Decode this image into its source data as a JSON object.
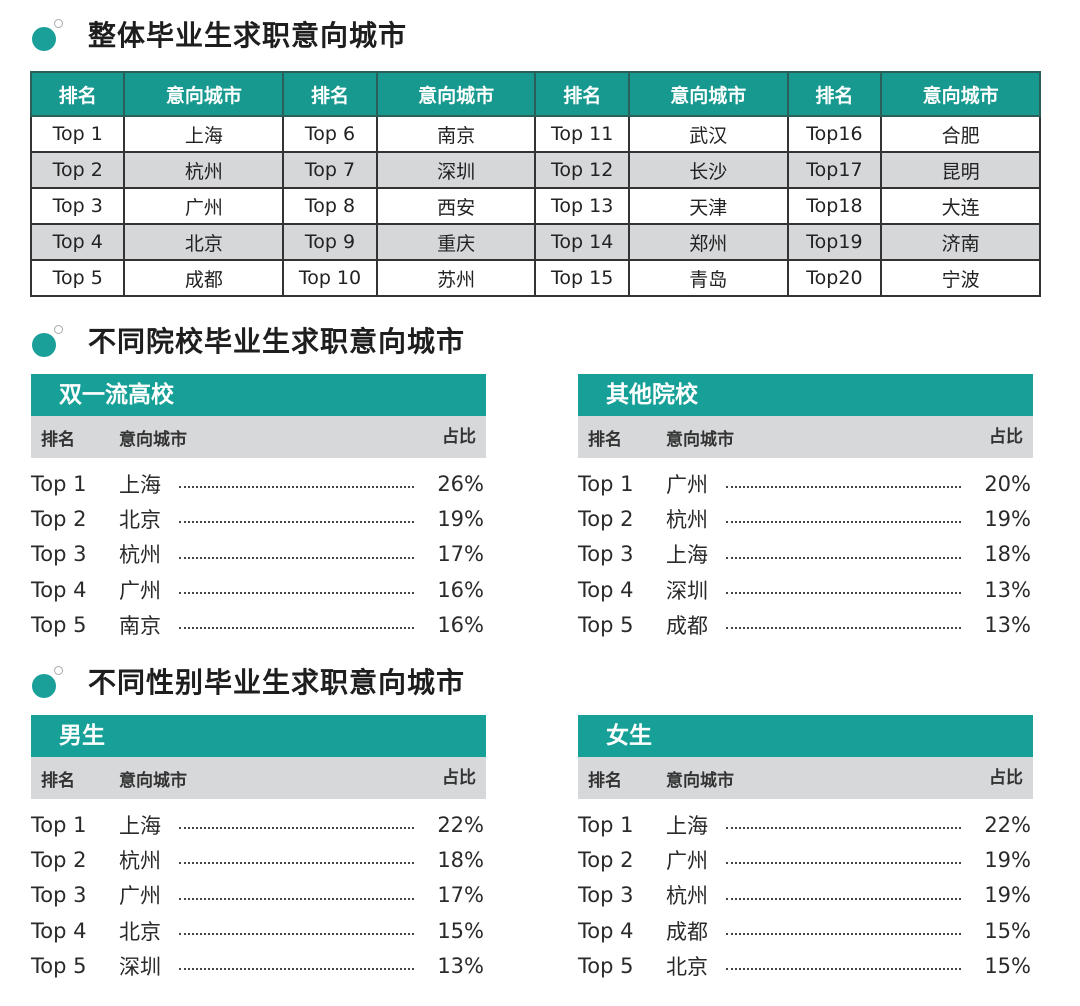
{
  "sections": {
    "overall": {
      "title": "整体毕业生求职意向城市",
      "headers": {
        "rank": "排名",
        "city": "意向城市"
      },
      "rows": [
        [
          {
            "rank": "Top 1",
            "city": "上海"
          },
          {
            "rank": "Top 6",
            "city": "南京"
          },
          {
            "rank": "Top 11",
            "city": "武汉"
          },
          {
            "rank": "Top16",
            "city": "合肥"
          }
        ],
        [
          {
            "rank": "Top 2",
            "city": "杭州"
          },
          {
            "rank": "Top 7",
            "city": "深圳"
          },
          {
            "rank": "Top 12",
            "city": "长沙"
          },
          {
            "rank": "Top17",
            "city": "昆明"
          }
        ],
        [
          {
            "rank": "Top 3",
            "city": "广州"
          },
          {
            "rank": "Top 8",
            "city": "西安"
          },
          {
            "rank": "Top 13",
            "city": "天津"
          },
          {
            "rank": "Top18",
            "city": "大连"
          }
        ],
        [
          {
            "rank": "Top 4",
            "city": "北京"
          },
          {
            "rank": "Top 9",
            "city": "重庆"
          },
          {
            "rank": "Top 14",
            "city": "郑州"
          },
          {
            "rank": "Top19",
            "city": "济南"
          }
        ],
        [
          {
            "rank": "Top 5",
            "city": "成都"
          },
          {
            "rank": "Top 10",
            "city": "苏州"
          },
          {
            "rank": "Top 15",
            "city": "青岛"
          },
          {
            "rank": "Top20",
            "city": "宁波"
          }
        ]
      ]
    },
    "by_school": {
      "title": "不同院校毕业生求职意向城市",
      "cards": [
        {
          "label": "双一流高校",
          "headers": {
            "rank": "排名",
            "city": "意向城市",
            "pct": "占比"
          },
          "rows": [
            {
              "rank": "Top 1",
              "city": "上海",
              "pct": "26%"
            },
            {
              "rank": "Top 2",
              "city": "北京",
              "pct": "19%"
            },
            {
              "rank": "Top 3",
              "city": "杭州",
              "pct": "17%"
            },
            {
              "rank": "Top 4",
              "city": "广州",
              "pct": "16%"
            },
            {
              "rank": "Top 5",
              "city": "南京",
              "pct": "16%"
            }
          ]
        },
        {
          "label": "其他院校",
          "headers": {
            "rank": "排名",
            "city": "意向城市",
            "pct": "占比"
          },
          "rows": [
            {
              "rank": "Top 1",
              "city": "广州",
              "pct": "20%"
            },
            {
              "rank": "Top 2",
              "city": "杭州",
              "pct": "19%"
            },
            {
              "rank": "Top 3",
              "city": "上海",
              "pct": "18%"
            },
            {
              "rank": "Top 4",
              "city": "深圳",
              "pct": "13%"
            },
            {
              "rank": "Top 5",
              "city": "成都",
              "pct": "13%"
            }
          ]
        }
      ]
    },
    "by_gender": {
      "title": "不同性别毕业生求职意向城市",
      "cards": [
        {
          "label": "男生",
          "headers": {
            "rank": "排名",
            "city": "意向城市",
            "pct": "占比"
          },
          "rows": [
            {
              "rank": "Top 1",
              "city": "上海",
              "pct": "22%"
            },
            {
              "rank": "Top 2",
              "city": "杭州",
              "pct": "18%"
            },
            {
              "rank": "Top 3",
              "city": "广州",
              "pct": "17%"
            },
            {
              "rank": "Top 4",
              "city": "北京",
              "pct": "15%"
            },
            {
              "rank": "Top 5",
              "city": "深圳",
              "pct": "13%"
            }
          ]
        },
        {
          "label": "女生",
          "headers": {
            "rank": "排名",
            "city": "意向城市",
            "pct": "占比"
          },
          "rows": [
            {
              "rank": "Top 1",
              "city": "上海",
              "pct": "22%"
            },
            {
              "rank": "Top 2",
              "city": "广州",
              "pct": "19%"
            },
            {
              "rank": "Top 3",
              "city": "杭州",
              "pct": "19%"
            },
            {
              "rank": "Top 4",
              "city": "成都",
              "pct": "15%"
            },
            {
              "rank": "Top 5",
              "city": "北京",
              "pct": "15%"
            }
          ]
        }
      ]
    }
  },
  "colors": {
    "accent": "#17a097",
    "header_gray": "#d7d8da",
    "row_alt": "#d6d7d9",
    "bullet": "#1a9f99"
  }
}
